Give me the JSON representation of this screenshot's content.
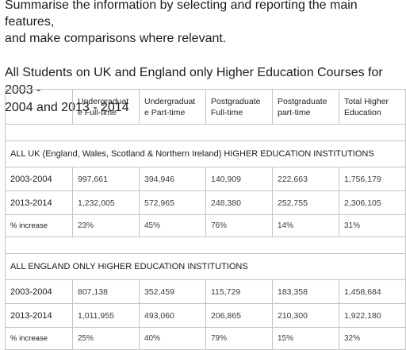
{
  "instructions": {
    "line1": "Summarise the information by selecting and reporting the main features,",
    "line2": "and make comparisons where relevant."
  },
  "table_title": {
    "line1": "All Students on UK and England only Higher Education Courses for 2003 -",
    "line2": "2004 and 2013 - 2014"
  },
  "table": {
    "headers": [
      "",
      "Undergraduate Full-time",
      "Undergraduate Part-time",
      "Postgraduate Full-time",
      "Postgraduate part-time",
      "Total Higher Education"
    ],
    "header_lines": [
      [
        "",
        ""
      ],
      [
        "Undergraduat",
        "e Full-time"
      ],
      [
        "Undergraduat",
        "e Part-time"
      ],
      [
        "Postgraduate",
        "Full-time"
      ],
      [
        "Postgraduate",
        "part-time"
      ],
      [
        "Total Higher",
        "Education"
      ]
    ],
    "sections": [
      {
        "title": "ALL UK (England, Wales, Scotland & Northern Ireland) HIGHER EDUCATION INSTITUTIONS",
        "rows": [
          {
            "label": "2003-2004",
            "values": [
              "997,661",
              "394,946",
              "140,909",
              "222,663",
              "1,756,179"
            ]
          },
          {
            "label": "2013-2014",
            "values": [
              "1,232,005",
              "572,965",
              "248,380",
              "252,755",
              "2,306,105"
            ]
          },
          {
            "label": "% increase",
            "values": [
              "23%",
              "45%",
              "76%",
              "14%",
              "31%"
            ]
          }
        ]
      },
      {
        "title": "ALL ENGLAND ONLY HIGHER EDUCATION INSTITUTIONS",
        "rows": [
          {
            "label": "2003-2004",
            "values": [
              "807,138",
              "352,459",
              "115,729",
              "183,358",
              "1,458,684"
            ]
          },
          {
            "label": "2013-2014",
            "values": [
              "1,011,955",
              "493,060",
              "206,865",
              "210,300",
              "1,922,180"
            ]
          },
          {
            "label": "% increase",
            "values": [
              "25%",
              "40%",
              "79%",
              "15%",
              "32%"
            ]
          }
        ]
      }
    ]
  }
}
